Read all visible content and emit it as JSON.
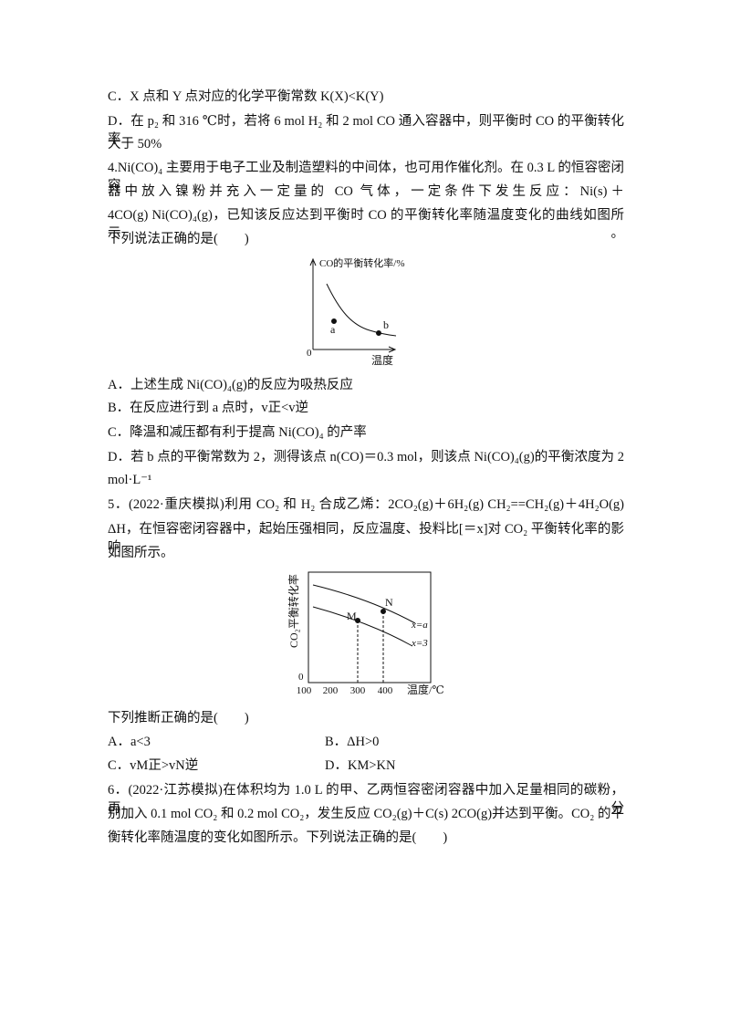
{
  "lines_a": [
    "C．X 点和 Y 点对应的化学平衡常数 K(X)<K(Y)",
    "D．在 p₂ 和 316 ℃时，若将 6 mol H₂ 和 2 mol CO 通入容器中，则平衡时 CO 的平衡转化率",
    "大于 50%",
    "4.Ni(CO)₄ 主要用于电子工业及制造塑料的中间体，也可用作催化剂。在 0.3 L 的恒容密闭容",
    "器中放入镍粉并充入一定量的 CO 气体，一定条件下发生反应：Ni(s)＋",
    "4CO(g)      Ni(CO)₄(g)，已知该反应达到平衡时 CO 的平衡转化率随温度变化的曲线如图所示。",
    "下列说法正确的是(　　)"
  ],
  "figure1": {
    "y_label": "CO的平衡转化率/%",
    "x_label": "温度",
    "origin": "0",
    "point_a": "a",
    "point_b": "b"
  },
  "lines_b": [
    "A．上述生成 Ni(CO)₄(g)的反应为吸热反应",
    "B．在反应进行到 a 点时，v正<v逆",
    "C．降温和减压都有利于提高 Ni(CO)₄ 的产率",
    "D．若 b 点的平衡常数为 2，测得该点 n(CO)＝0.3 mol，则该点 Ni(CO)₄(g)的平衡浓度为 2",
    "mol·L⁻¹",
    "5．(2022·重庆模拟)利用 CO₂ 和 H₂ 合成乙烯：2CO₂(g)＋6H₂(g)      CH₂==CH₂(g)＋4H₂O(g)",
    "ΔH，在恒容密闭容器中，起始压强相同，反应温度、投料比[＝x]对 CO₂ 平衡转化率的影响",
    "如图所示。"
  ],
  "figure2": {
    "y_label": "CO₂平衡转化率",
    "x_label": "温度/℃",
    "origin": "0",
    "x_tick_labels": [
      "100",
      "200",
      "300",
      "400"
    ],
    "point_m": "M",
    "point_n": "N",
    "curve_a": "x=a",
    "curve_3": "x=3"
  },
  "lines_c": [
    "下列推断正确的是(　　)",
    "A．a<3",
    "B．ΔH>0",
    "C．vM正>vN逆",
    "D．KM>KN",
    "6．(2022·江苏模拟)在体积均为 1.0 L 的甲、乙两恒容密闭容器中加入足量相同的碳粉，再分",
    "别加入 0.1 mol CO₂ 和 0.2 mol CO₂，发生反应 CO₂(g)＋C(s)      2CO(g)并达到平衡。CO₂ 的平",
    "衡转化率随温度的变化如图所示。下列说法正确的是(　　)"
  ]
}
